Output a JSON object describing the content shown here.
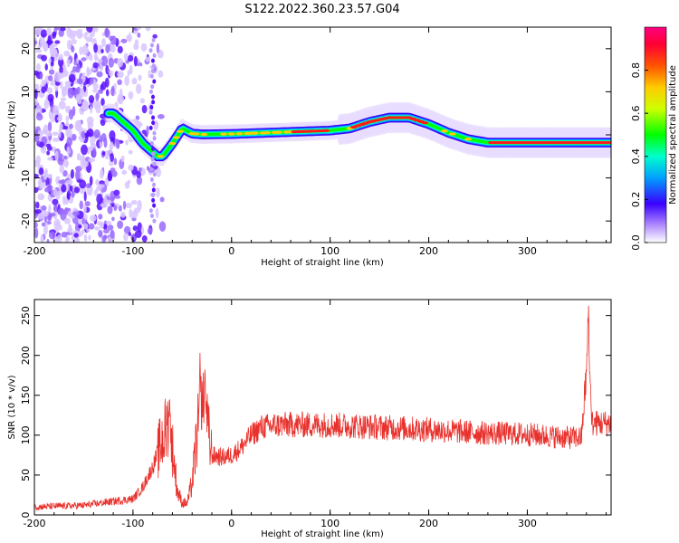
{
  "title": "S122.2022.360.23.57.G04",
  "chart_data": [
    {
      "type": "heatmap",
      "xlabel": "Height of straight line (km)",
      "ylabel": "Frequency (Hz)",
      "xlim": [
        -200,
        385
      ],
      "ylim": [
        -25,
        25
      ],
      "x_ticks": [
        -200,
        -100,
        0,
        100,
        200,
        300
      ],
      "y_ticks": [
        -20,
        -10,
        0,
        10,
        20
      ],
      "colorbar": {
        "label": "Normalized spectral amplitude",
        "range": [
          0,
          1
        ],
        "ticks": [
          0.0,
          0.2,
          0.4,
          0.6,
          0.8
        ]
      },
      "ridge": {
        "x": [
          -120,
          -110,
          -100,
          -90,
          -80,
          -75,
          -70,
          -60,
          -50,
          -40,
          -30,
          0,
          50,
          100,
          120,
          140,
          160,
          180,
          200,
          220,
          240,
          260,
          300,
          385
        ],
        "y": [
          5,
          3,
          1,
          -2,
          -4,
          -5,
          -5,
          -2,
          1.5,
          0.3,
          0.1,
          0.2,
          0.6,
          1.0,
          1.5,
          3.0,
          4.0,
          4.0,
          2.5,
          0.5,
          -1.0,
          -1.8,
          -1.8,
          -1.8
        ]
      }
    },
    {
      "type": "line",
      "xlabel": "Height of straight line (km)",
      "ylabel": "SNR (10 * v/v)",
      "xlim": [
        -200,
        385
      ],
      "ylim": [
        0,
        270
      ],
      "x_ticks": [
        -200,
        -100,
        0,
        100,
        200,
        300
      ],
      "y_ticks": [
        0,
        50,
        100,
        150,
        200,
        250
      ],
      "line_color": "#e8312c",
      "trend": {
        "x": [
          -200,
          -150,
          -120,
          -100,
          -90,
          -80,
          -70,
          -65,
          -60,
          -55,
          -50,
          -45,
          -40,
          -35,
          -30,
          -25,
          -20,
          -10,
          0,
          10,
          20,
          30,
          50,
          100,
          150,
          200,
          250,
          300,
          340,
          355,
          360,
          362,
          365,
          385
        ],
        "y": [
          10,
          12,
          17,
          20,
          35,
          60,
          95,
          110,
          85,
          30,
          15,
          15,
          40,
          100,
          130,
          110,
          75,
          72,
          75,
          85,
          100,
          110,
          113,
          113,
          110,
          107,
          103,
          101,
          97,
          97,
          180,
          250,
          115,
          115
        ]
      },
      "spikes": [
        {
          "x": -63,
          "y": 150
        },
        {
          "x": -32,
          "y": 200
        },
        {
          "x": -27,
          "y": 190
        },
        {
          "x": 362,
          "y": 268
        }
      ]
    }
  ]
}
